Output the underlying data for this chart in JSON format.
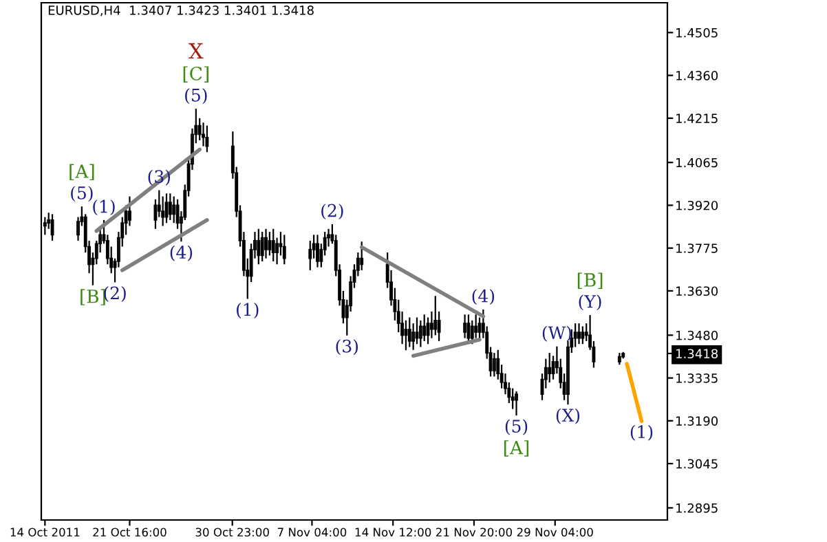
{
  "chart_data": {
    "type": "candlestick",
    "title": "EURUSD,H4  1.3407 1.3423 1.3401 1.3418",
    "color": "#000000",
    "x": [
      "2011-10-14T00:00",
      "2011-10-14T08:00",
      "2011-10-14T16:00",
      "2011-10-17T00:00",
      "2011-10-17T08:00",
      "2011-10-17T16:00",
      "2011-10-18T00:00",
      "2011-10-18T08:00",
      "2011-10-18T16:00",
      "2011-10-19T00:00",
      "2011-10-19T08:00",
      "2011-10-19T16:00",
      "2011-10-20T00:00",
      "2011-10-20T08:00",
      "2011-10-20T16:00",
      "2011-10-21T00:00",
      "2011-10-21T08:00",
      "2011-10-21T16:00",
      "2011-10-24T00:00",
      "2011-10-24T08:00",
      "2011-10-24T16:00",
      "2011-10-25T00:00",
      "2011-10-25T08:00",
      "2011-10-25T16:00",
      "2011-10-26T00:00",
      "2011-10-26T08:00",
      "2011-10-26T16:00",
      "2011-10-27T00:00",
      "2011-10-27T08:00",
      "2011-10-27T16:00",
      "2011-10-28T00:00",
      "2011-10-28T08:00",
      "2011-10-28T16:00",
      "2011-10-31T00:00",
      "2011-10-31T08:00",
      "2011-10-31T16:00",
      "2011-11-01T00:00",
      "2011-11-01T08:00",
      "2011-11-01T16:00",
      "2011-11-02T00:00",
      "2011-11-02T08:00",
      "2011-11-02T16:00",
      "2011-11-03T00:00",
      "2011-11-03T08:00",
      "2011-11-03T16:00",
      "2011-11-04T00:00",
      "2011-11-04T08:00",
      "2011-11-04T16:00",
      "2011-11-07T00:00",
      "2011-11-07T08:00",
      "2011-11-07T16:00",
      "2011-11-08T00:00",
      "2011-11-08T08:00",
      "2011-11-08T16:00",
      "2011-11-09T00:00",
      "2011-11-09T08:00",
      "2011-11-09T16:00",
      "2011-11-10T00:00",
      "2011-11-10T08:00",
      "2011-11-10T16:00",
      "2011-11-11T00:00",
      "2011-11-11T08:00",
      "2011-11-11T16:00",
      "2011-11-14T00:00",
      "2011-11-14T08:00",
      "2011-11-14T16:00",
      "2011-11-15T00:00",
      "2011-11-15T08:00",
      "2011-11-15T16:00",
      "2011-11-16T00:00",
      "2011-11-16T08:00",
      "2011-11-16T16:00",
      "2011-11-17T00:00",
      "2011-11-17T08:00",
      "2011-11-17T16:00",
      "2011-11-18T00:00",
      "2011-11-18T08:00",
      "2011-11-18T16:00",
      "2011-11-21T00:00",
      "2011-11-21T08:00",
      "2011-11-21T16:00",
      "2011-11-22T00:00",
      "2011-11-22T08:00",
      "2011-11-22T16:00",
      "2011-11-23T00:00",
      "2011-11-23T08:00",
      "2011-11-23T16:00",
      "2011-11-24T00:00",
      "2011-11-24T08:00",
      "2011-11-24T16:00",
      "2011-11-25T00:00",
      "2011-11-25T08:00",
      "2011-11-25T16:00",
      "2011-11-28T00:00",
      "2011-11-28T08:00",
      "2011-11-28T16:00",
      "2011-11-29T00:00",
      "2011-11-29T08:00",
      "2011-11-29T16:00",
      "2011-11-30T00:00",
      "2011-11-30T08:00",
      "2011-11-30T16:00",
      "2011-12-01T00:00",
      "2011-12-01T08:00",
      "2011-12-01T16:00",
      "2011-12-02T00:00",
      "2011-12-02T08:00",
      "2011-12-02T16:00",
      "2011-12-05T00:00",
      "2011-12-05T08:00"
    ],
    "ohlc": [
      [
        1.385,
        1.388,
        1.382,
        1.386
      ],
      [
        1.386,
        1.3895,
        1.384,
        1.387
      ],
      [
        1.387,
        1.389,
        1.38,
        1.382
      ],
      [
        1.382,
        1.388,
        1.38,
        1.3865
      ],
      [
        1.3865,
        1.3916,
        1.385,
        1.388
      ],
      [
        1.388,
        1.389,
        1.376,
        1.378
      ],
      [
        1.378,
        1.38,
        1.369,
        1.372
      ],
      [
        1.372,
        1.376,
        1.3649,
        1.374
      ],
      [
        1.374,
        1.38,
        1.372,
        1.379
      ],
      [
        1.379,
        1.384,
        1.376,
        1.382
      ],
      [
        1.382,
        1.387,
        1.379,
        1.38
      ],
      [
        1.38,
        1.382,
        1.372,
        1.374
      ],
      [
        1.374,
        1.378,
        1.369,
        1.371
      ],
      [
        1.371,
        1.374,
        1.3659,
        1.373
      ],
      [
        1.373,
        1.383,
        1.371,
        1.381
      ],
      [
        1.381,
        1.388,
        1.378,
        1.386
      ],
      [
        1.386,
        1.392,
        1.382,
        1.39
      ],
      [
        1.39,
        1.395,
        1.385,
        1.387
      ],
      [
        1.387,
        1.394,
        1.384,
        1.392
      ],
      [
        1.392,
        1.3971,
        1.388,
        1.39
      ],
      [
        1.39,
        1.395,
        1.385,
        1.388
      ],
      [
        1.388,
        1.396,
        1.386,
        1.393
      ],
      [
        1.393,
        1.396,
        1.387,
        1.389
      ],
      [
        1.389,
        1.395,
        1.386,
        1.392
      ],
      [
        1.392,
        1.394,
        1.384,
        1.386
      ],
      [
        1.386,
        1.39,
        1.3797,
        1.388
      ],
      [
        1.388,
        1.399,
        1.387,
        1.397
      ],
      [
        1.397,
        1.408,
        1.395,
        1.406
      ],
      [
        1.406,
        1.418,
        1.404,
        1.416
      ],
      [
        1.416,
        1.4247,
        1.413,
        1.419
      ],
      [
        1.419,
        1.4215,
        1.414,
        1.416
      ],
      [
        1.416,
        1.42,
        1.412,
        1.415
      ],
      [
        1.415,
        1.419,
        1.41,
        1.412
      ],
      [
        1.412,
        1.417,
        1.401,
        1.403
      ],
      [
        1.403,
        1.405,
        1.388,
        1.39
      ],
      [
        1.39,
        1.392,
        1.378,
        1.38
      ],
      [
        1.38,
        1.383,
        1.368,
        1.37
      ],
      [
        1.37,
        1.374,
        1.3603,
        1.368
      ],
      [
        1.368,
        1.379,
        1.366,
        1.377
      ],
      [
        1.377,
        1.383,
        1.374,
        1.38
      ],
      [
        1.38,
        1.384,
        1.372,
        1.375
      ],
      [
        1.375,
        1.383,
        1.373,
        1.381
      ],
      [
        1.381,
        1.384,
        1.374,
        1.377
      ],
      [
        1.377,
        1.383,
        1.375,
        1.38
      ],
      [
        1.38,
        1.384,
        1.373,
        1.376
      ],
      [
        1.376,
        1.381,
        1.372,
        1.379
      ],
      [
        1.379,
        1.383,
        1.375,
        1.378
      ],
      [
        1.378,
        1.382,
        1.372,
        1.374
      ],
      [
        1.374,
        1.38,
        1.37,
        1.377
      ],
      [
        1.377,
        1.382,
        1.374,
        1.379
      ],
      [
        1.379,
        1.382,
        1.371,
        1.373
      ],
      [
        1.373,
        1.379,
        1.371,
        1.377
      ],
      [
        1.377,
        1.383,
        1.375,
        1.381
      ],
      [
        1.381,
        1.384,
        1.378,
        1.382
      ],
      [
        1.382,
        1.3856,
        1.379,
        1.38
      ],
      [
        1.38,
        1.382,
        1.368,
        1.37
      ],
      [
        1.37,
        1.372,
        1.358,
        1.36
      ],
      [
        1.36,
        1.363,
        1.352,
        1.354
      ],
      [
        1.354,
        1.36,
        1.3479,
        1.358
      ],
      [
        1.358,
        1.368,
        1.356,
        1.366
      ],
      [
        1.366,
        1.372,
        1.364,
        1.37
      ],
      [
        1.37,
        1.376,
        1.368,
        1.374
      ],
      [
        1.374,
        1.3797,
        1.37,
        1.372
      ],
      [
        1.372,
        1.376,
        1.364,
        1.366
      ],
      [
        1.366,
        1.37,
        1.358,
        1.36
      ],
      [
        1.36,
        1.364,
        1.353,
        1.356
      ],
      [
        1.356,
        1.36,
        1.349,
        1.352
      ],
      [
        1.352,
        1.356,
        1.345,
        1.348
      ],
      [
        1.348,
        1.353,
        1.3429,
        1.35
      ],
      [
        1.35,
        1.354,
        1.344,
        1.346
      ],
      [
        1.346,
        1.352,
        1.343,
        1.349
      ],
      [
        1.349,
        1.354,
        1.345,
        1.347
      ],
      [
        1.347,
        1.353,
        1.344,
        1.351
      ],
      [
        1.351,
        1.355,
        1.346,
        1.348
      ],
      [
        1.348,
        1.354,
        1.345,
        1.352
      ],
      [
        1.352,
        1.356,
        1.347,
        1.35
      ],
      [
        1.35,
        1.3613,
        1.348,
        1.353
      ],
      [
        1.353,
        1.356,
        1.346,
        1.349
      ],
      [
        1.349,
        1.355,
        1.347,
        1.352
      ],
      [
        1.352,
        1.355,
        1.345,
        1.347
      ],
      [
        1.347,
        1.353,
        1.345,
        1.351
      ],
      [
        1.351,
        1.355,
        1.347,
        1.349
      ],
      [
        1.349,
        1.354,
        1.346,
        1.352
      ],
      [
        1.352,
        1.3567,
        1.347,
        1.349
      ],
      [
        1.349,
        1.351,
        1.34,
        1.342
      ],
      [
        1.342,
        1.344,
        1.334,
        1.336
      ],
      [
        1.336,
        1.342,
        1.334,
        1.34
      ],
      [
        1.34,
        1.343,
        1.333,
        1.335
      ],
      [
        1.335,
        1.338,
        1.33,
        1.332
      ],
      [
        1.332,
        1.335,
        1.328,
        1.33
      ],
      [
        1.33,
        1.332,
        1.325,
        1.327
      ],
      [
        1.327,
        1.33,
        1.323,
        1.326
      ],
      [
        1.326,
        1.329,
        1.3208,
        1.328
      ],
      [
        1.328,
        1.335,
        1.326,
        1.333
      ],
      [
        1.333,
        1.34,
        1.33,
        1.337
      ],
      [
        1.337,
        1.342,
        1.332,
        1.335
      ],
      [
        1.335,
        1.341,
        1.333,
        1.339
      ],
      [
        1.339,
        1.3442,
        1.335,
        1.337
      ],
      [
        1.337,
        1.34,
        1.33,
        1.332
      ],
      [
        1.332,
        1.335,
        1.326,
        1.328
      ],
      [
        1.328,
        1.346,
        1.3245,
        1.344
      ],
      [
        1.344,
        1.35,
        1.342,
        1.347
      ],
      [
        1.347,
        1.352,
        1.344,
        1.349
      ],
      [
        1.349,
        1.352,
        1.345,
        1.347
      ],
      [
        1.347,
        1.351,
        1.345,
        1.349
      ],
      [
        1.349,
        1.352,
        1.346,
        1.348
      ],
      [
        1.348,
        1.3548,
        1.343,
        1.344
      ],
      [
        1.344,
        1.346,
        1.337,
        1.339
      ],
      [
        1.339,
        1.342,
        1.338,
        1.3407
      ],
      [
        1.3407,
        1.3423,
        1.3401,
        1.3418
      ]
    ],
    "series": [
      {
        "type": "line",
        "color": "#808080",
        "x": [
          "2011-10-18T16:00",
          "2011-10-28T00:00"
        ],
        "values": [
          1.3833,
          1.4109
        ]
      },
      {
        "type": "line",
        "color": "#808080",
        "x": [
          "2011-10-21T00:00",
          "2011-10-28T16:00"
        ],
        "values": [
          1.37,
          1.387
        ]
      },
      {
        "type": "line",
        "color": "#808080",
        "x": [
          "2011-11-11T16:00",
          "2011-11-22T16:00"
        ],
        "values": [
          1.3778,
          1.3544
        ]
      },
      {
        "type": "line",
        "color": "#808080",
        "x": [
          "2011-11-16T08:00",
          "2011-11-22T08:00"
        ],
        "values": [
          1.341,
          1.3465
        ]
      },
      {
        "type": "line",
        "color": "#ffa500",
        "x": [
          "2011-12-05T16:00",
          "2011-12-06T00:00",
          "2011-12-06T08:00",
          "2011-12-06T16:00",
          "2011-12-07T00:00"
        ],
        "values": [
          1.3383,
          1.3335,
          1.3286,
          1.3238,
          1.3189
        ]
      }
    ],
    "xlim": [
      "2011-10-13T16:00",
      "2011-12-09T08:00"
    ],
    "xticks": [
      {
        "value": "2011-10-14T00:00",
        "label": "14 Oct 2011"
      },
      {
        "value": "2011-10-21T16:00",
        "label": "21 Oct 16:00"
      },
      {
        "value": "2011-10-30T23:00",
        "label": "30 Oct 23:00"
      },
      {
        "value": "2011-11-07T04:00",
        "label": "7 Nov 04:00"
      },
      {
        "value": "2011-11-14T12:00",
        "label": "14 Nov 12:00"
      },
      {
        "value": "2011-11-21T20:00",
        "label": "21 Nov 20:00"
      },
      {
        "value": "2011-11-29T04:00",
        "label": "29 Nov 04:00"
      }
    ],
    "ylim": [
      1.2854,
      1.4606
    ],
    "yticks": [
      1.4505,
      {
        "value": 1.436,
        "label": "1.4360"
      },
      1.4215,
      1.4065,
      {
        "value": 1.392,
        "label": "1.3920"
      },
      1.3775,
      {
        "value": 1.363,
        "label": "1.3630"
      },
      {
        "value": 1.348,
        "label": "1.3480"
      },
      1.3418,
      1.3335,
      {
        "value": 1.319,
        "label": "1.3190"
      },
      1.3045,
      1.2895
    ],
    "annotations": [
      {
        "text": "(5)",
        "x": "2011-10-17T08:00",
        "y": 1.3916
      },
      {
        "text": "[A]",
        "x": "2011-10-17T08:00",
        "y": 1.3916
      },
      {
        "text": "[B]",
        "x": "2011-10-18T08:00",
        "y": 1.3649
      },
      {
        "text": "(1)",
        "x": "2011-10-19T08:00",
        "y": 1.387
      },
      {
        "text": "(2)",
        "x": "2011-10-20T08:00",
        "y": 1.3659
      },
      {
        "text": "(3)",
        "x": "2011-10-24T08:00",
        "y": 1.3971
      },
      {
        "text": "(4)",
        "x": "2011-10-26T08:00",
        "y": 1.3797
      },
      {
        "text": "(5)",
        "x": "2011-10-27T16:00",
        "y": 1.4247
      },
      {
        "text": "[C]",
        "x": "2011-10-27T16:00",
        "y": 1.4247
      },
      {
        "text": "X",
        "x": "2011-10-27T16:00",
        "y": 1.4247
      },
      {
        "text": "(1)",
        "x": "2011-11-01T08:00",
        "y": 1.3603
      },
      {
        "text": "(2)",
        "x": "2011-11-09T00:00",
        "y": 1.3856
      },
      {
        "text": "(3)",
        "x": "2011-11-10T08:00",
        "y": 1.3479
      },
      {
        "text": "(4)",
        "x": "2011-11-22T16:00",
        "y": 1.3567
      },
      {
        "text": "(5)",
        "x": "2011-11-25T16:00",
        "y": 1.3208
      },
      {
        "text": "[A]",
        "x": "2011-11-25T16:00",
        "y": 1.3208
      },
      {
        "text": "(W)",
        "x": "2011-11-29T08:00",
        "y": 1.3442
      },
      {
        "text": "(X)",
        "x": "2011-11-30T08:00",
        "y": 1.3245
      },
      {
        "text": "(Y)",
        "x": "2011-12-02T08:00",
        "y": 1.3548
      },
      {
        "text": "[B]",
        "x": "2011-12-02T08:00",
        "y": 1.3548
      },
      {
        "text": "(1)",
        "x": "2011-12-07T00:00",
        "y": 1.3189
      }
    ],
    "grid": false,
    "legend": false
  }
}
